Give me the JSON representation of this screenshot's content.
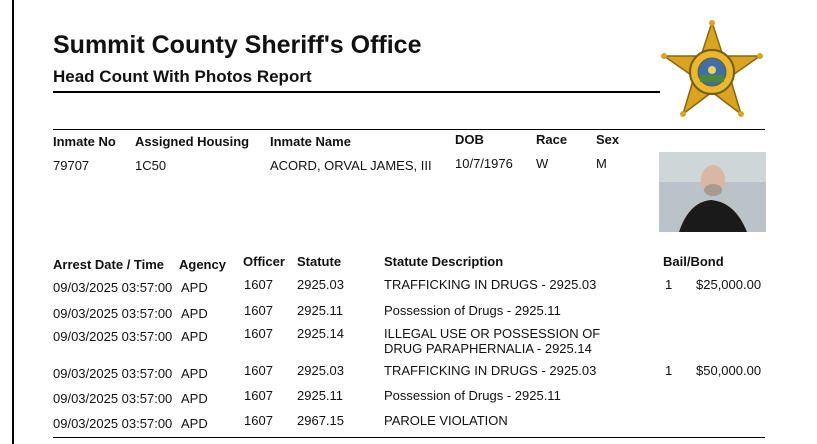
{
  "header": {
    "title": "Summit County Sheriff's Office",
    "subtitle": "Head Count With Photos Report"
  },
  "inmate": {
    "headers": [
      "Inmate No",
      "Assigned Housing",
      "Inmate Name",
      "DOB",
      "Race",
      "Sex"
    ],
    "values": [
      "79707",
      "1C50",
      "ACORD, ORVAL JAMES, III",
      "10/7/1976",
      "W",
      "M"
    ]
  },
  "charges": {
    "headers": [
      "Arrest Date / Time",
      "Agency",
      "Officer",
      "Statute",
      "Statute Description",
      "Bail/Bond"
    ],
    "rows": [
      {
        "arrest": "09/03/2025 03:57:00",
        "agency": "APD",
        "officer": "1607",
        "statute": "2925.03",
        "description": "TRAFFICKING IN DRUGS - 2925.03",
        "bail_count": "1",
        "bail_amount": "$25,000.00"
      },
      {
        "arrest": "09/03/2025 03:57:00",
        "agency": "APD",
        "officer": "1607",
        "statute": "2925.11",
        "description": "Possession of Drugs - 2925.11"
      },
      {
        "arrest": "09/03/2025 03:57:00",
        "agency": "APD",
        "officer": "1607",
        "statute": "2925.14",
        "description": "ILLEGAL USE OR POSSESSION OF DRUG PARAPHERNALIA - 2925.14"
      },
      {
        "arrest": "09/03/2025 03:57:00",
        "agency": "APD",
        "officer": "1607",
        "statute": "2925.03",
        "description": "TRAFFICKING IN DRUGS - 2925.03",
        "bail_count": "1",
        "bail_amount": "$50,000.00"
      },
      {
        "arrest": "09/03/2025 03:57:00",
        "agency": "APD",
        "officer": "1607",
        "statute": "2925.11",
        "description": "Possession of Drugs - 2925.11"
      },
      {
        "arrest": "09/03/2025 03:57:00",
        "agency": "APD",
        "officer": "1607",
        "statute": "2967.15",
        "description": "PAROLE VIOLATION"
      }
    ]
  }
}
